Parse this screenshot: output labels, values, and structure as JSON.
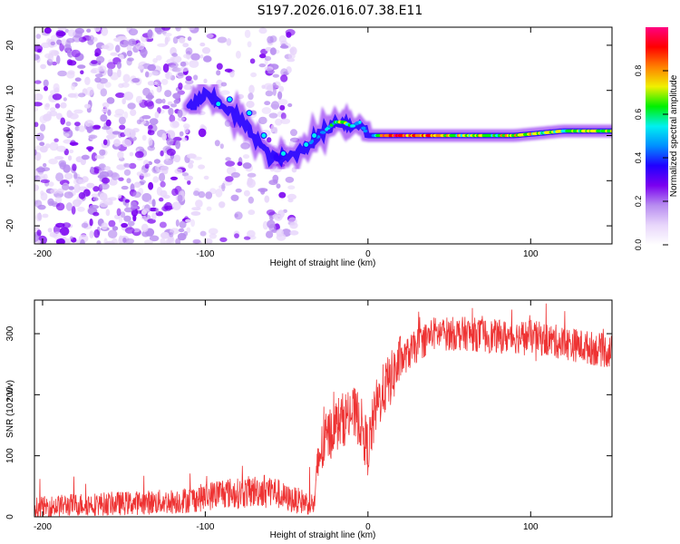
{
  "title": "S197.2026.016.07.38.E11",
  "colors": {
    "signal": "#ee3333",
    "axis": "#000000",
    "colormap": [
      "#ffffff",
      "#e8d6fb",
      "#b78cf0",
      "#7a00f0",
      "#2000ff",
      "#0090ff",
      "#00f0f0",
      "#00f000",
      "#f0f000",
      "#ff8000",
      "#ff0000",
      "#ff0080"
    ]
  },
  "chart_data": [
    {
      "type": "heatmap",
      "name": "spectrogram",
      "xlabel": "Height of straight line (km)",
      "ylabel": "Frequency (Hz)",
      "xlim": [
        -205,
        150
      ],
      "ylim": [
        -24,
        24
      ],
      "xticks": [
        -200,
        -100,
        0,
        100
      ],
      "yticks": [
        -20,
        -10,
        0,
        10,
        20
      ],
      "colorbar": {
        "label": "Normalized spectral amplitude",
        "range": [
          0,
          1
        ],
        "ticks": [
          0.0,
          0.2,
          0.4,
          0.6,
          0.8
        ]
      },
      "ridge": {
        "x": [
          -110,
          -100,
          -90,
          -80,
          -70,
          -60,
          -50,
          -40,
          -30,
          -20,
          -15,
          -10,
          -5,
          0,
          5,
          10,
          30,
          60,
          90,
          120,
          150
        ],
        "freq": [
          6,
          9,
          7,
          4,
          0,
          -5,
          -5,
          -3,
          0,
          3,
          3,
          2,
          3,
          0,
          0,
          0,
          0,
          0,
          0,
          1,
          1
        ],
        "amplitude": [
          0.3,
          0.4,
          0.4,
          0.4,
          0.4,
          0.3,
          0.3,
          0.4,
          0.5,
          0.6,
          0.8,
          0.6,
          0.5,
          0.4,
          0.6,
          0.9,
          0.95,
          0.7,
          0.8,
          0.7,
          0.7
        ]
      },
      "noise_region_x": [
        -205,
        -45
      ]
    },
    {
      "type": "line",
      "name": "snr",
      "xlabel": "Height of straight line (km)",
      "ylabel": "SNR (10 * v/v)",
      "xlim": [
        -205,
        150
      ],
      "ylim": [
        0,
        355
      ],
      "xticks": [
        -200,
        -100,
        0,
        100
      ],
      "yticks": [
        0,
        100,
        200,
        300
      ],
      "series": [
        {
          "name": "SNR",
          "x": [
            -205,
            -180,
            -150,
            -120,
            -110,
            -100,
            -90,
            -80,
            -70,
            -60,
            -50,
            -40,
            -33,
            -30,
            -25,
            -20,
            -10,
            -5,
            0,
            5,
            10,
            15,
            20,
            30,
            40,
            60,
            80,
            100,
            120,
            150
          ],
          "y": [
            15,
            20,
            22,
            25,
            28,
            32,
            40,
            38,
            42,
            45,
            30,
            25,
            20,
            100,
            130,
            150,
            170,
            160,
            110,
            180,
            210,
            230,
            255,
            280,
            300,
            300,
            295,
            295,
            285,
            270
          ]
        }
      ]
    }
  ]
}
